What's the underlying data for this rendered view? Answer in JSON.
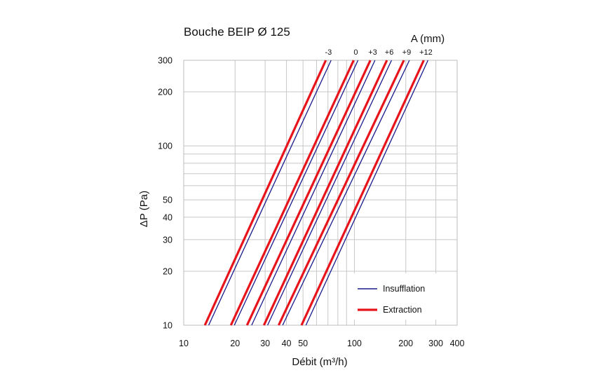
{
  "chart_data": {
    "type": "line",
    "title": "Bouche BEIP Ø 125",
    "xlabel": "Débit (m³/h)",
    "ylabel": "ΔP (Pa)",
    "x_scale": "log",
    "y_scale": "log",
    "xlim": [
      10,
      400
    ],
    "ylim": [
      10,
      300
    ],
    "x_ticks": [
      "10",
      "20",
      "30",
      "40",
      "50",
      "100",
      "200",
      "300",
      "400"
    ],
    "y_ticks": [
      "10",
      "20",
      "30",
      "40",
      "50",
      "100",
      "200",
      "300"
    ],
    "grid": true,
    "parameter_label": "A (mm)",
    "parameter_values": [
      "-3",
      "0",
      "+3",
      "+6",
      "+9",
      "+12"
    ],
    "legend_position": "bottom-right",
    "legend": [
      {
        "name": "Insufflation",
        "color": "#1a1a8c"
      },
      {
        "name": "Extraction",
        "color": "#e8141c"
      }
    ],
    "series": [
      {
        "name": "Insufflation",
        "a": "-3",
        "color": "#1a1a8c",
        "points": [
          [
            14,
            10
          ],
          [
            73,
            300
          ]
        ]
      },
      {
        "name": "Extraction",
        "a": "-3",
        "color": "#e8141c",
        "points": [
          [
            13.3,
            10
          ],
          [
            68,
            300
          ]
        ]
      },
      {
        "name": "Insufflation",
        "a": "0",
        "color": "#1a1a8c",
        "points": [
          [
            19.8,
            10
          ],
          [
            105,
            300
          ]
        ]
      },
      {
        "name": "Extraction",
        "a": "0",
        "color": "#e8141c",
        "points": [
          [
            18.9,
            10
          ],
          [
            99,
            300
          ]
        ]
      },
      {
        "name": "Insufflation",
        "a": "+3",
        "color": "#1a1a8c",
        "points": [
          [
            25,
            10
          ],
          [
            132,
            300
          ]
        ]
      },
      {
        "name": "Extraction",
        "a": "+3",
        "color": "#e8141c",
        "points": [
          [
            23.5,
            10
          ],
          [
            124,
            300
          ]
        ]
      },
      {
        "name": "Insufflation",
        "a": "+6",
        "color": "#1a1a8c",
        "points": [
          [
            31,
            10
          ],
          [
            165,
            300
          ]
        ]
      },
      {
        "name": "Extraction",
        "a": "+6",
        "color": "#e8141c",
        "points": [
          [
            29.5,
            10
          ],
          [
            155,
            300
          ]
        ]
      },
      {
        "name": "Insufflation",
        "a": "+9",
        "color": "#1a1a8c",
        "points": [
          [
            38,
            10
          ],
          [
            210,
            300
          ]
        ]
      },
      {
        "name": "Extraction",
        "a": "+9",
        "color": "#e8141c",
        "points": [
          [
            36,
            10
          ],
          [
            195,
            300
          ]
        ]
      },
      {
        "name": "Insufflation",
        "a": "+12",
        "color": "#1a1a8c",
        "points": [
          [
            52,
            10
          ],
          [
            270,
            300
          ]
        ]
      },
      {
        "name": "Extraction",
        "a": "+12",
        "color": "#e8141c",
        "points": [
          [
            49,
            10
          ],
          [
            255,
            300
          ]
        ]
      }
    ]
  }
}
